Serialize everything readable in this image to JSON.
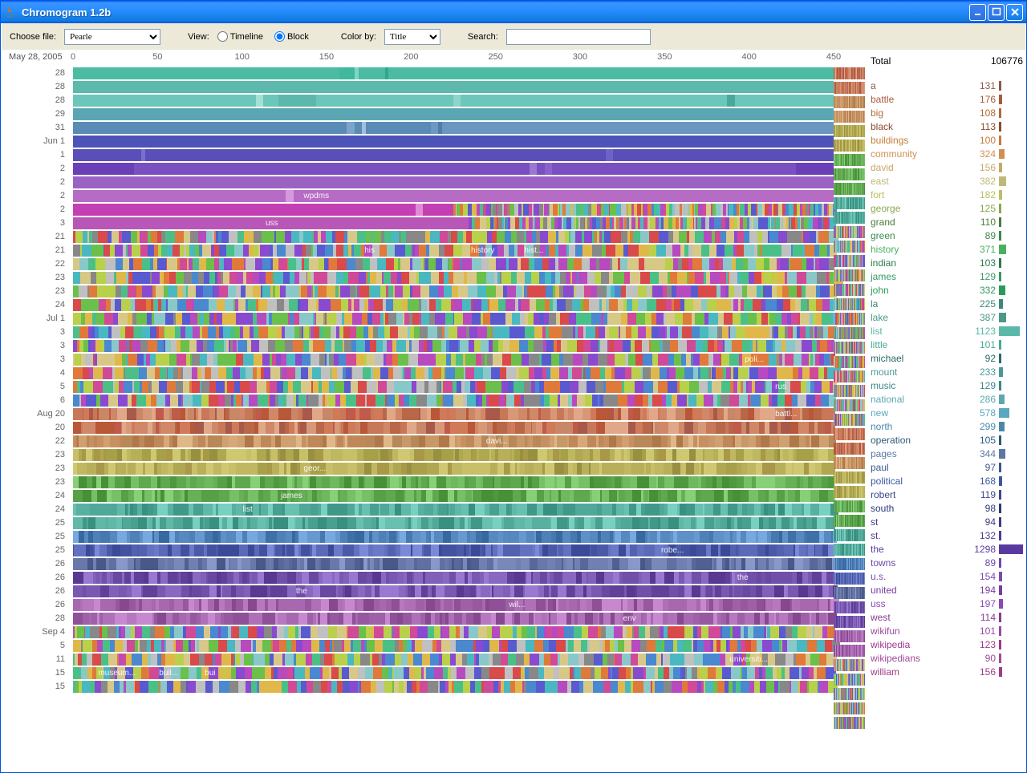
{
  "window": {
    "title": "Chromogram 1.2b"
  },
  "toolbar": {
    "choose_file_label": "Choose file:",
    "file_value": "Pearle",
    "view_label": "View:",
    "timeline_label": "Timeline",
    "block_label": "Block",
    "view_selected": "block",
    "color_by_label": "Color by:",
    "color_by_value": "Title",
    "search_label": "Search:",
    "search_value": ""
  },
  "ruler": {
    "origin": "May 28, 2005",
    "ticks": [
      0,
      50,
      100,
      150,
      200,
      250,
      300,
      350,
      400,
      450
    ]
  },
  "rows": [
    {
      "label": "28",
      "style": "solid",
      "base": "#4bbba2",
      "segs": [
        [
          0,
          35,
          "#4bbba2"
        ],
        [
          35,
          37,
          "#3fb89c"
        ],
        [
          37,
          37.5,
          "#7dd7c5"
        ],
        [
          37.5,
          41,
          "#4bbba2"
        ],
        [
          41,
          41.5,
          "#2fa88e"
        ],
        [
          41.5,
          100,
          "#4bbba2"
        ]
      ]
    },
    {
      "label": "28",
      "style": "solid",
      "base": "#5cb9ac",
      "segs": [
        [
          0,
          100,
          "#5cb9ac"
        ]
      ]
    },
    {
      "label": "28",
      "style": "solid",
      "base": "#6cc6b9",
      "segs": [
        [
          0,
          24,
          "#6cc6b9"
        ],
        [
          24,
          25,
          "#a3e0d6"
        ],
        [
          25,
          27,
          "#6cc6b9"
        ],
        [
          27,
          32,
          "#5cb8ab"
        ],
        [
          32,
          50,
          "#6cc6b9"
        ],
        [
          50,
          51,
          "#8dd5ca"
        ],
        [
          51,
          86,
          "#6cc6b9"
        ],
        [
          86,
          87,
          "#4aa89b"
        ],
        [
          87,
          100,
          "#6cc6b9"
        ]
      ]
    },
    {
      "label": "29",
      "style": "solid",
      "base": "#5aa7b3",
      "segs": [
        [
          0,
          100,
          "#5aa7b3"
        ]
      ]
    },
    {
      "label": "31",
      "style": "solid",
      "base": "#5a8bb5",
      "segs": [
        [
          0,
          36,
          "#5a8bb5"
        ],
        [
          36,
          37,
          "#7ba5c9"
        ],
        [
          37,
          38,
          "#5a8bb5"
        ],
        [
          38,
          38.5,
          "#a0bfda"
        ],
        [
          38.5,
          47,
          "#5a8bb5"
        ],
        [
          47,
          48,
          "#7097c1"
        ],
        [
          48,
          48.5,
          "#4c7ea9"
        ],
        [
          48.5,
          100,
          "#6a96bf"
        ]
      ]
    },
    {
      "label": "Jun 1",
      "style": "solid",
      "base": "#4d54b7",
      "segs": [
        [
          0,
          100,
          "#4d54b7"
        ]
      ]
    },
    {
      "label": "1",
      "style": "solid",
      "base": "#5a4fb8",
      "segs": [
        [
          0,
          9,
          "#5a4fb8"
        ],
        [
          9,
          9.5,
          "#7a70cc"
        ],
        [
          9.5,
          70,
          "#5a4fb8"
        ],
        [
          70,
          71,
          "#6e62c5"
        ],
        [
          71,
          100,
          "#5a4fb8"
        ]
      ]
    },
    {
      "label": "2",
      "style": "solid",
      "base": "#7a4fc1",
      "segs": [
        [
          0,
          8,
          "#6a3fb8"
        ],
        [
          8,
          60,
          "#7a4fc1"
        ],
        [
          60,
          61,
          "#9a77d5"
        ],
        [
          61,
          62,
          "#7a4fc1"
        ],
        [
          62,
          63,
          "#8a62cb"
        ],
        [
          63,
          95,
          "#7a4fc1"
        ],
        [
          95,
          100,
          "#6a3fb8"
        ]
      ]
    },
    {
      "label": "2",
      "style": "solid",
      "base": "#9a63c3",
      "segs": [
        [
          0,
          100,
          "#9a63c3"
        ]
      ]
    },
    {
      "label": "2",
      "style": "solid",
      "base": "#b66bc4",
      "segs": [
        [
          0,
          28,
          "#b66bc4"
        ],
        [
          28,
          29,
          "#d49add"
        ],
        [
          29,
          100,
          "#b66bc4"
        ]
      ],
      "text": [
        {
          "x": 30,
          "t": "wpdms"
        }
      ]
    },
    {
      "label": "2",
      "style": "solid",
      "base": "#c94cb8",
      "segs": [
        [
          0,
          45,
          "#c43fb2"
        ],
        [
          45,
          46,
          "#e08cd5"
        ],
        [
          46,
          50,
          "#c43fb2"
        ],
        [
          50,
          100,
          "noise"
        ]
      ]
    },
    {
      "label": "3",
      "style": "noise",
      "base": "",
      "segs": [
        [
          0,
          52,
          "#b857b8"
        ],
        [
          52,
          100,
          "noise"
        ]
      ],
      "text": [
        {
          "x": 25,
          "t": "uss"
        }
      ]
    },
    {
      "label": "21",
      "style": "noise"
    },
    {
      "label": "21",
      "style": "noise",
      "text": [
        {
          "x": 38,
          "t": "his"
        },
        {
          "x": 52,
          "t": "history"
        },
        {
          "x": 59,
          "t": "hist..."
        }
      ]
    },
    {
      "label": "22",
      "style": "noise"
    },
    {
      "label": "23",
      "style": "noise"
    },
    {
      "label": "23",
      "style": "noise"
    },
    {
      "label": "24",
      "style": "noise"
    },
    {
      "label": "Jul 1",
      "style": "noise"
    },
    {
      "label": "3",
      "style": "noise"
    },
    {
      "label": "3",
      "style": "noise"
    },
    {
      "label": "3",
      "style": "noise",
      "text": [
        {
          "x": 88,
          "t": "poli..."
        }
      ]
    },
    {
      "label": "4",
      "style": "noise"
    },
    {
      "label": "5",
      "style": "noise",
      "text": [
        {
          "x": 92,
          "t": "rus"
        }
      ]
    },
    {
      "label": "6",
      "style": "noise"
    },
    {
      "label": "Aug 20",
      "style": "noise",
      "hue": "warm",
      "text": [
        {
          "x": 92,
          "t": "battl..."
        }
      ]
    },
    {
      "label": "20",
      "style": "noise",
      "hue": "warm"
    },
    {
      "label": "22",
      "style": "noise",
      "hue": "warm2",
      "text": [
        {
          "x": 54,
          "t": "davi..."
        }
      ]
    },
    {
      "label": "23",
      "style": "noise",
      "hue": "olive"
    },
    {
      "label": "23",
      "style": "noise",
      "hue": "olive",
      "text": [
        {
          "x": 30,
          "t": "geor..."
        }
      ]
    },
    {
      "label": "23",
      "style": "noise",
      "hue": "green"
    },
    {
      "label": "24",
      "style": "noise",
      "hue": "green",
      "text": [
        {
          "x": 27,
          "t": "james"
        }
      ]
    },
    {
      "label": "24",
      "style": "noise",
      "hue": "teal",
      "text": [
        {
          "x": 22,
          "t": "list"
        }
      ]
    },
    {
      "label": "25",
      "style": "noise",
      "hue": "teal"
    },
    {
      "label": "25",
      "style": "noise",
      "hue": "blue"
    },
    {
      "label": "25",
      "style": "noise",
      "hue": "blue2",
      "text": [
        {
          "x": 77,
          "t": "robe..."
        }
      ]
    },
    {
      "label": "26",
      "style": "noise",
      "hue": "steelblue"
    },
    {
      "label": "26",
      "style": "noise",
      "hue": "purple",
      "text": [
        {
          "x": 87,
          "t": "the"
        }
      ]
    },
    {
      "label": "26",
      "style": "noise",
      "hue": "purple",
      "text": [
        {
          "x": 29,
          "t": "the"
        }
      ]
    },
    {
      "label": "26",
      "style": "noise",
      "hue": "mauve",
      "text": [
        {
          "x": 57,
          "t": "wil..."
        }
      ]
    },
    {
      "label": "28",
      "style": "noise",
      "hue": "mauve",
      "text": [
        {
          "x": 72,
          "t": "env"
        }
      ]
    },
    {
      "label": "Sep 4",
      "style": "noise"
    },
    {
      "label": "5",
      "style": "noise"
    },
    {
      "label": "11",
      "style": "noise",
      "text": [
        {
          "x": 86,
          "t": "universiti..."
        }
      ]
    },
    {
      "label": "15",
      "style": "noise",
      "text": [
        {
          "x": 3,
          "t": "museum..."
        },
        {
          "x": 11,
          "t": "buil..."
        },
        {
          "x": 17,
          "t": "bui"
        }
      ]
    },
    {
      "label": "15",
      "style": "noise"
    }
  ],
  "legend": {
    "total_label": "Total",
    "total_value": "106776",
    "max_count": 1298,
    "items": [
      {
        "word": "a",
        "count": 131,
        "color": "#8a5a4a"
      },
      {
        "word": "battle",
        "count": 176,
        "color": "#a85a3a"
      },
      {
        "word": "big",
        "count": 108,
        "color": "#b06a3a"
      },
      {
        "word": "black",
        "count": 113,
        "color": "#8a4a2a"
      },
      {
        "word": "buildings",
        "count": 100,
        "color": "#c77a3a"
      },
      {
        "word": "community",
        "count": 324,
        "color": "#d09050"
      },
      {
        "word": "david",
        "count": 156,
        "color": "#c8a868"
      },
      {
        "word": "east",
        "count": 382,
        "color": "#c0b878"
      },
      {
        "word": "fort",
        "count": 182,
        "color": "#b8c060"
      },
      {
        "word": "george",
        "count": 125,
        "color": "#88a850"
      },
      {
        "word": "grand",
        "count": 110,
        "color": "#4a7a3a"
      },
      {
        "word": "green",
        "count": 89,
        "color": "#3a8a4a"
      },
      {
        "word": "history",
        "count": 371,
        "color": "#4ab060"
      },
      {
        "word": "indian",
        "count": 103,
        "color": "#2a7a4a"
      },
      {
        "word": "james",
        "count": 129,
        "color": "#3a9868"
      },
      {
        "word": "john",
        "count": 332,
        "color": "#2a9a5a"
      },
      {
        "word": "la",
        "count": 225,
        "color": "#3a8878"
      },
      {
        "word": "lake",
        "count": 387,
        "color": "#4a9888"
      },
      {
        "word": "list",
        "count": 1123,
        "color": "#5ab8a8"
      },
      {
        "word": "little",
        "count": 101,
        "color": "#4aa898"
      },
      {
        "word": "michael",
        "count": 92,
        "color": "#2a6a6a"
      },
      {
        "word": "mount",
        "count": 233,
        "color": "#4a9898"
      },
      {
        "word": "music",
        "count": 129,
        "color": "#3a8888"
      },
      {
        "word": "national",
        "count": 286,
        "color": "#5aa8b0"
      },
      {
        "word": "new",
        "count": 578,
        "color": "#5aa8c0"
      },
      {
        "word": "north",
        "count": 299,
        "color": "#4a88a8"
      },
      {
        "word": "operation",
        "count": 105,
        "color": "#2a5a7a"
      },
      {
        "word": "pages",
        "count": 344,
        "color": "#5a78a0"
      },
      {
        "word": "paul",
        "count": 97,
        "color": "#3a5888"
      },
      {
        "word": "political",
        "count": 168,
        "color": "#3a58a0"
      },
      {
        "word": "robert",
        "count": 119,
        "color": "#3a4888"
      },
      {
        "word": "south",
        "count": 98,
        "color": "#2a3a78"
      },
      {
        "word": "st",
        "count": 94,
        "color": "#3a3a88"
      },
      {
        "word": "st.",
        "count": 132,
        "color": "#4a3a98"
      },
      {
        "word": "the",
        "count": 1298,
        "color": "#5a3aa0"
      },
      {
        "word": "towns",
        "count": 89,
        "color": "#6a4aa8"
      },
      {
        "word": "u.s.",
        "count": 154,
        "color": "#7a4ab0"
      },
      {
        "word": "united",
        "count": 194,
        "color": "#7a3aa0"
      },
      {
        "word": "uss",
        "count": 197,
        "color": "#8a4ab0"
      },
      {
        "word": "west",
        "count": 114,
        "color": "#8a3a90"
      },
      {
        "word": "wikifun",
        "count": 101,
        "color": "#9a4aa0"
      },
      {
        "word": "wikipedia",
        "count": 123,
        "color": "#9a3a90"
      },
      {
        "word": "wikipedians",
        "count": 90,
        "color": "#a04a98"
      },
      {
        "word": "william",
        "count": 156,
        "color": "#a03a88"
      }
    ]
  },
  "palettes": {
    "noise": [
      "#d94a4a",
      "#e07a3a",
      "#e0b84a",
      "#b8d04a",
      "#6ac04a",
      "#4ac088",
      "#4ab8c0",
      "#4a88d0",
      "#5a5ad0",
      "#8a4ad0",
      "#b84ac0",
      "#d04a98",
      "#c0c0c0",
      "#888888",
      "#d8c888",
      "#88c8c8"
    ],
    "warm": [
      "#c05a4a",
      "#d07a5a",
      "#c88868",
      "#b86848",
      "#d89878",
      "#a85a4a",
      "#e0a888",
      "#c87858",
      "#b85838",
      "#d08868"
    ],
    "warm2": [
      "#c89868",
      "#d8a878",
      "#c08858",
      "#e0b888",
      "#b88858",
      "#d0a070",
      "#c89060",
      "#b07848"
    ],
    "olive": [
      "#b8b058",
      "#c8c068",
      "#a8a048",
      "#d0c870",
      "#b0a850",
      "#989040",
      "#c0b860",
      "#a89848"
    ],
    "green": [
      "#68b058",
      "#78c068",
      "#58a048",
      "#88d078",
      "#60a850",
      "#509840",
      "#70b860",
      "#489038"
    ],
    "teal": [
      "#58b0a0",
      "#68c0b0",
      "#48a090",
      "#78d0c0",
      "#50a898",
      "#409888",
      "#60b8a8",
      "#389080"
    ],
    "blue": [
      "#5888c0",
      "#6898d0",
      "#4878b0",
      "#78a8e0",
      "#5080b8",
      "#4070a8",
      "#6090c8",
      "#3868a0"
    ],
    "blue2": [
      "#5a6ab8",
      "#6a7ac8",
      "#4a5aa8",
      "#7a8ad8",
      "#5262b0",
      "#4252a0",
      "#6272c0",
      "#3a4a98"
    ],
    "steelblue": [
      "#6878a8",
      "#7888b8",
      "#586898",
      "#8898c8",
      "#6070a0",
      "#506090",
      "#7080b0",
      "#485888"
    ],
    "purple": [
      "#7858b0",
      "#8868c0",
      "#6848a0",
      "#9878d0",
      "#7050a8",
      "#604098",
      "#8060b8",
      "#583890"
    ],
    "mauve": [
      "#a868b0",
      "#b878c0",
      "#9858a0",
      "#c888d0",
      "#a060a8",
      "#905098",
      "#b070b8",
      "#884890"
    ]
  },
  "thumb_palettes": [
    "warm",
    "warm",
    "warm2",
    "warm2",
    "olive",
    "olive",
    "green",
    "green",
    "green",
    "teal",
    "teal",
    "noise",
    "noise",
    "noise",
    "noise",
    "noise",
    "noise",
    "noise",
    "noise",
    "noise",
    "noise",
    "noise",
    "noise",
    "noise",
    "noise",
    "warm",
    "warm",
    "warm2",
    "olive",
    "olive",
    "green",
    "green",
    "teal",
    "teal",
    "blue",
    "blue2",
    "steelblue",
    "purple",
    "purple",
    "mauve",
    "mauve",
    "noise",
    "noise",
    "noise",
    "noise",
    "noise"
  ]
}
